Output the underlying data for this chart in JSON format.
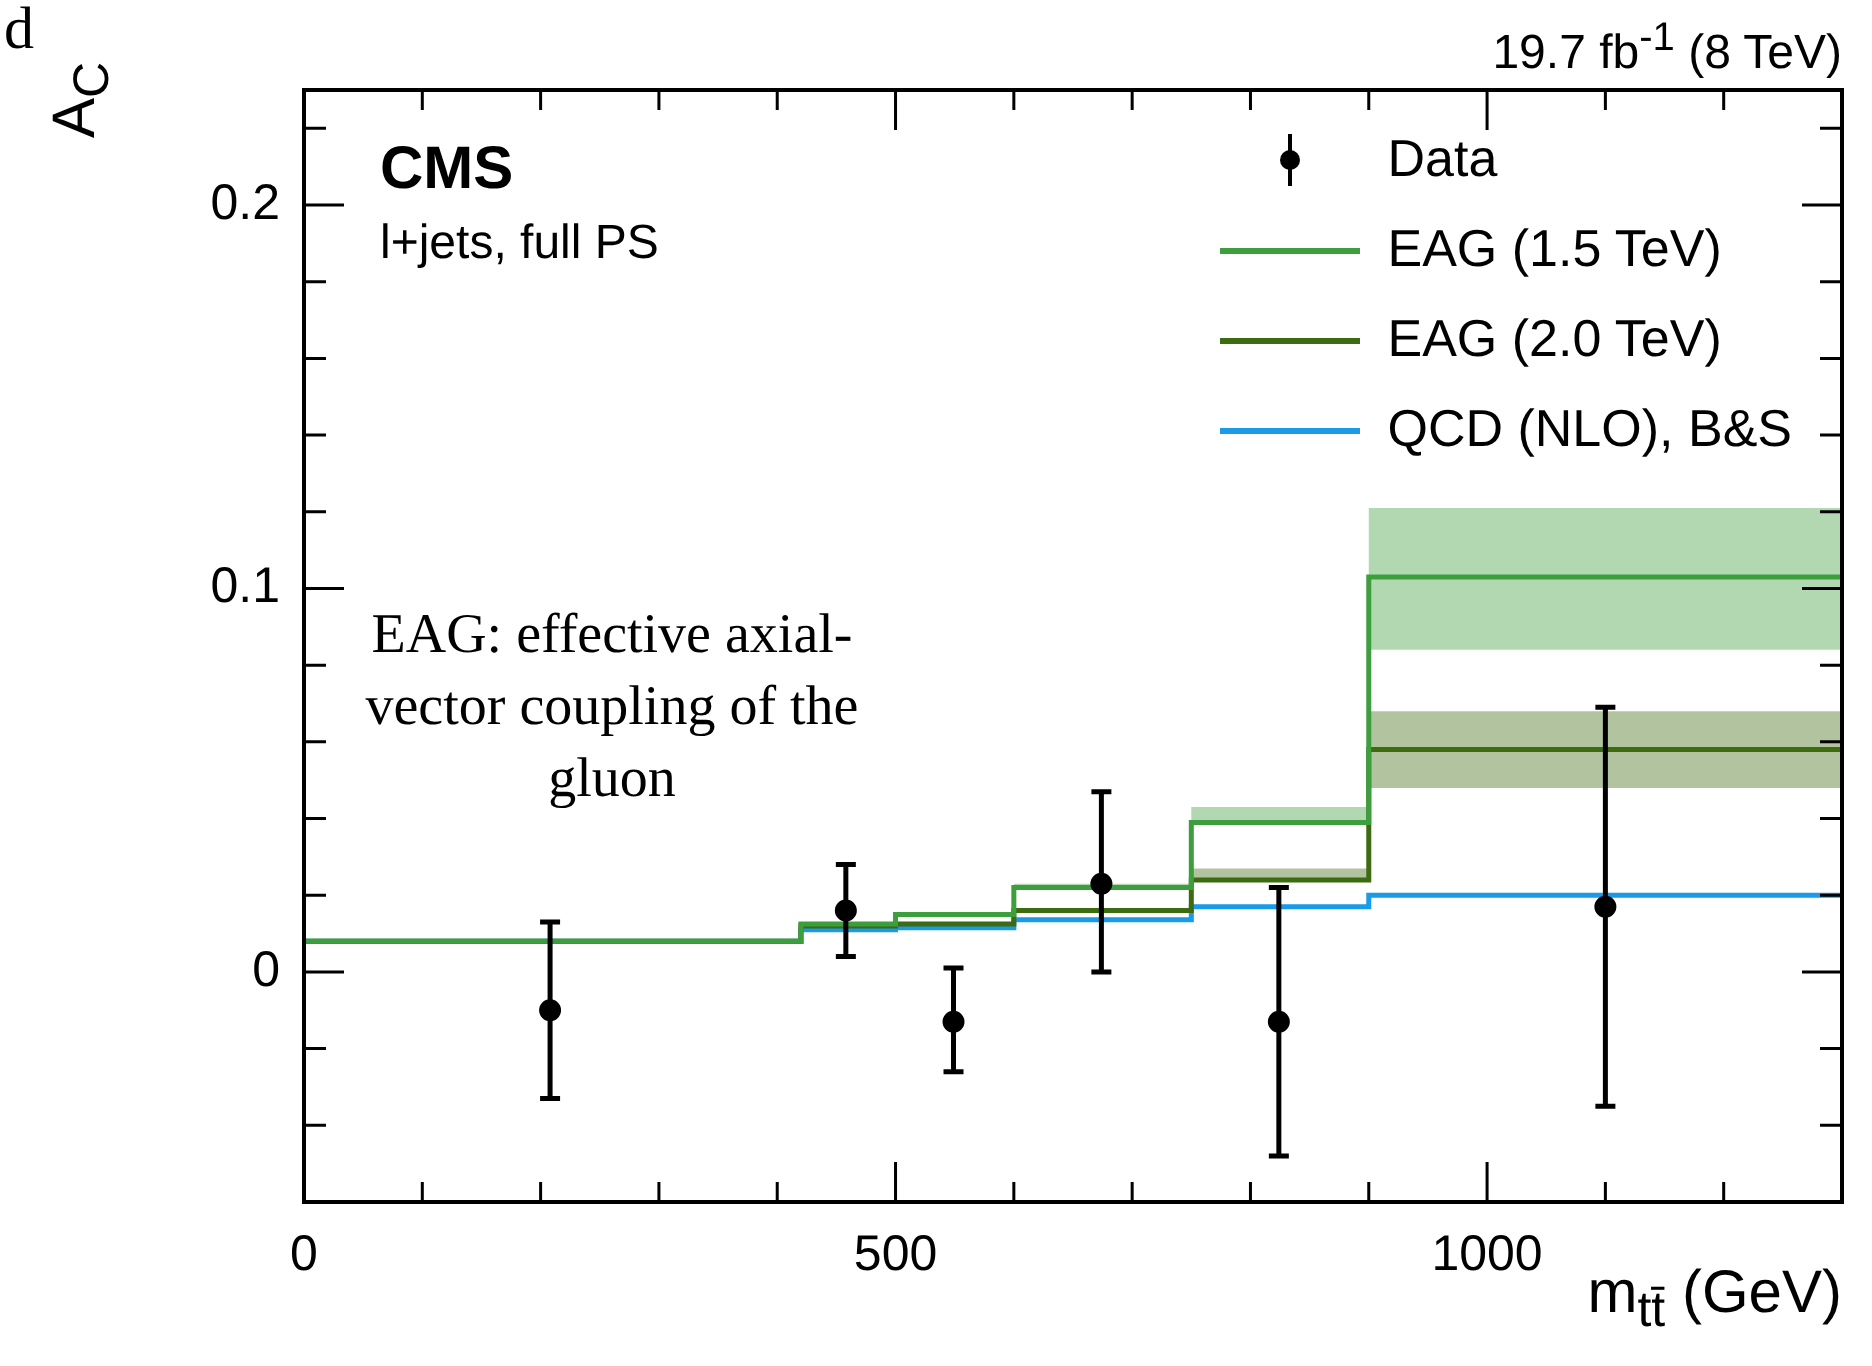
{
  "chart_data": {
    "type": "step",
    "xlabel": "m$_{tt̄}$ (GeV)",
    "ylabel": "A$_{C}$",
    "annotations": [
      "CMS",
      "l+jets, full PS",
      "19.7 fb$^{-1}$ (8 TeV)",
      "EAG: effective axial-vector coupling of the gluon",
      "d"
    ],
    "xlim": [
      0,
      1300
    ],
    "ylim": [
      -0.06,
      0.23
    ],
    "xticks": [
      0,
      {
        "value": 100,
        "label": null
      },
      {
        "value": 200,
        "label": null
      },
      {
        "value": 300,
        "label": null
      },
      {
        "value": 400,
        "label": null
      },
      500,
      {
        "value": 600,
        "label": null
      },
      {
        "value": 700,
        "label": null
      },
      {
        "value": 800,
        "label": null
      },
      {
        "value": 900,
        "label": null
      },
      1000,
      {
        "value": 1100,
        "label": null
      },
      {
        "value": 1200,
        "label": null
      },
      {
        "value": 1300,
        "label": null
      }
    ],
    "yticks": [
      {
        "value": -0.06,
        "label": null
      },
      {
        "value": -0.04,
        "label": null
      },
      {
        "value": -0.02,
        "label": null
      },
      0,
      {
        "value": 0.02,
        "label": null
      },
      {
        "value": 0.04,
        "label": null
      },
      {
        "value": 0.06,
        "label": null
      },
      {
        "value": 0.08,
        "label": null
      },
      0.1,
      {
        "value": 0.12,
        "label": null
      },
      {
        "value": 0.14,
        "label": null
      },
      {
        "value": 0.16,
        "label": null
      },
      {
        "value": 0.18,
        "label": null
      },
      0.2,
      {
        "value": 0.22,
        "label": null
      }
    ],
    "legend": "top right",
    "series": [
      {
        "name": "Data",
        "type": "scatter",
        "marker": "circle",
        "color": "#000000",
        "x": [
          208,
          458,
          549,
          674,
          824,
          1100
        ],
        "values": [
          -0.01,
          0.016,
          -0.013,
          0.023,
          -0.013,
          0.017
        ],
        "errors": [
          [
            -0.033,
            0.013
          ],
          [
            0.004,
            0.028
          ],
          [
            -0.026,
            0.001
          ],
          [
            0.0,
            0.047
          ],
          [
            -0.048,
            0.022
          ],
          [
            -0.035,
            0.069
          ]
        ]
      },
      {
        "name": "EAG (1.5 TeV)",
        "color": "#3c9e3c",
        "x": [
          0,
          420,
          500,
          600,
          750,
          900,
          1300
        ],
        "values": [
          0.008,
          0.0125,
          0.015,
          0.022,
          0.039,
          0.103,
          0.103
        ],
        "lower": [
          null,
          null,
          null,
          0.022,
          0.039,
          0.084,
          0.084
        ],
        "upper": [
          null,
          null,
          null,
          0.023,
          0.043,
          0.121,
          0.121
        ]
      },
      {
        "name": "EAG (2.0 TeV)",
        "color": "#3d6b10",
        "x": [
          0,
          420,
          500,
          600,
          750,
          900,
          1300
        ],
        "values": [
          0.008,
          0.012,
          0.0125,
          0.016,
          0.024,
          0.058,
          0.058
        ],
        "lower": [
          null,
          null,
          null,
          null,
          0.024,
          0.048,
          0.048
        ],
        "upper": [
          null,
          null,
          null,
          null,
          0.027,
          0.068,
          0.068
        ]
      },
      {
        "name": "QCD (NLO), B&S",
        "color": "#1a9be8",
        "x": [
          0,
          420,
          500,
          600,
          750,
          900,
          1300
        ],
        "values": [
          0.008,
          0.011,
          0.0115,
          0.0136,
          0.017,
          0.02,
          0.02
        ]
      }
    ]
  }
}
